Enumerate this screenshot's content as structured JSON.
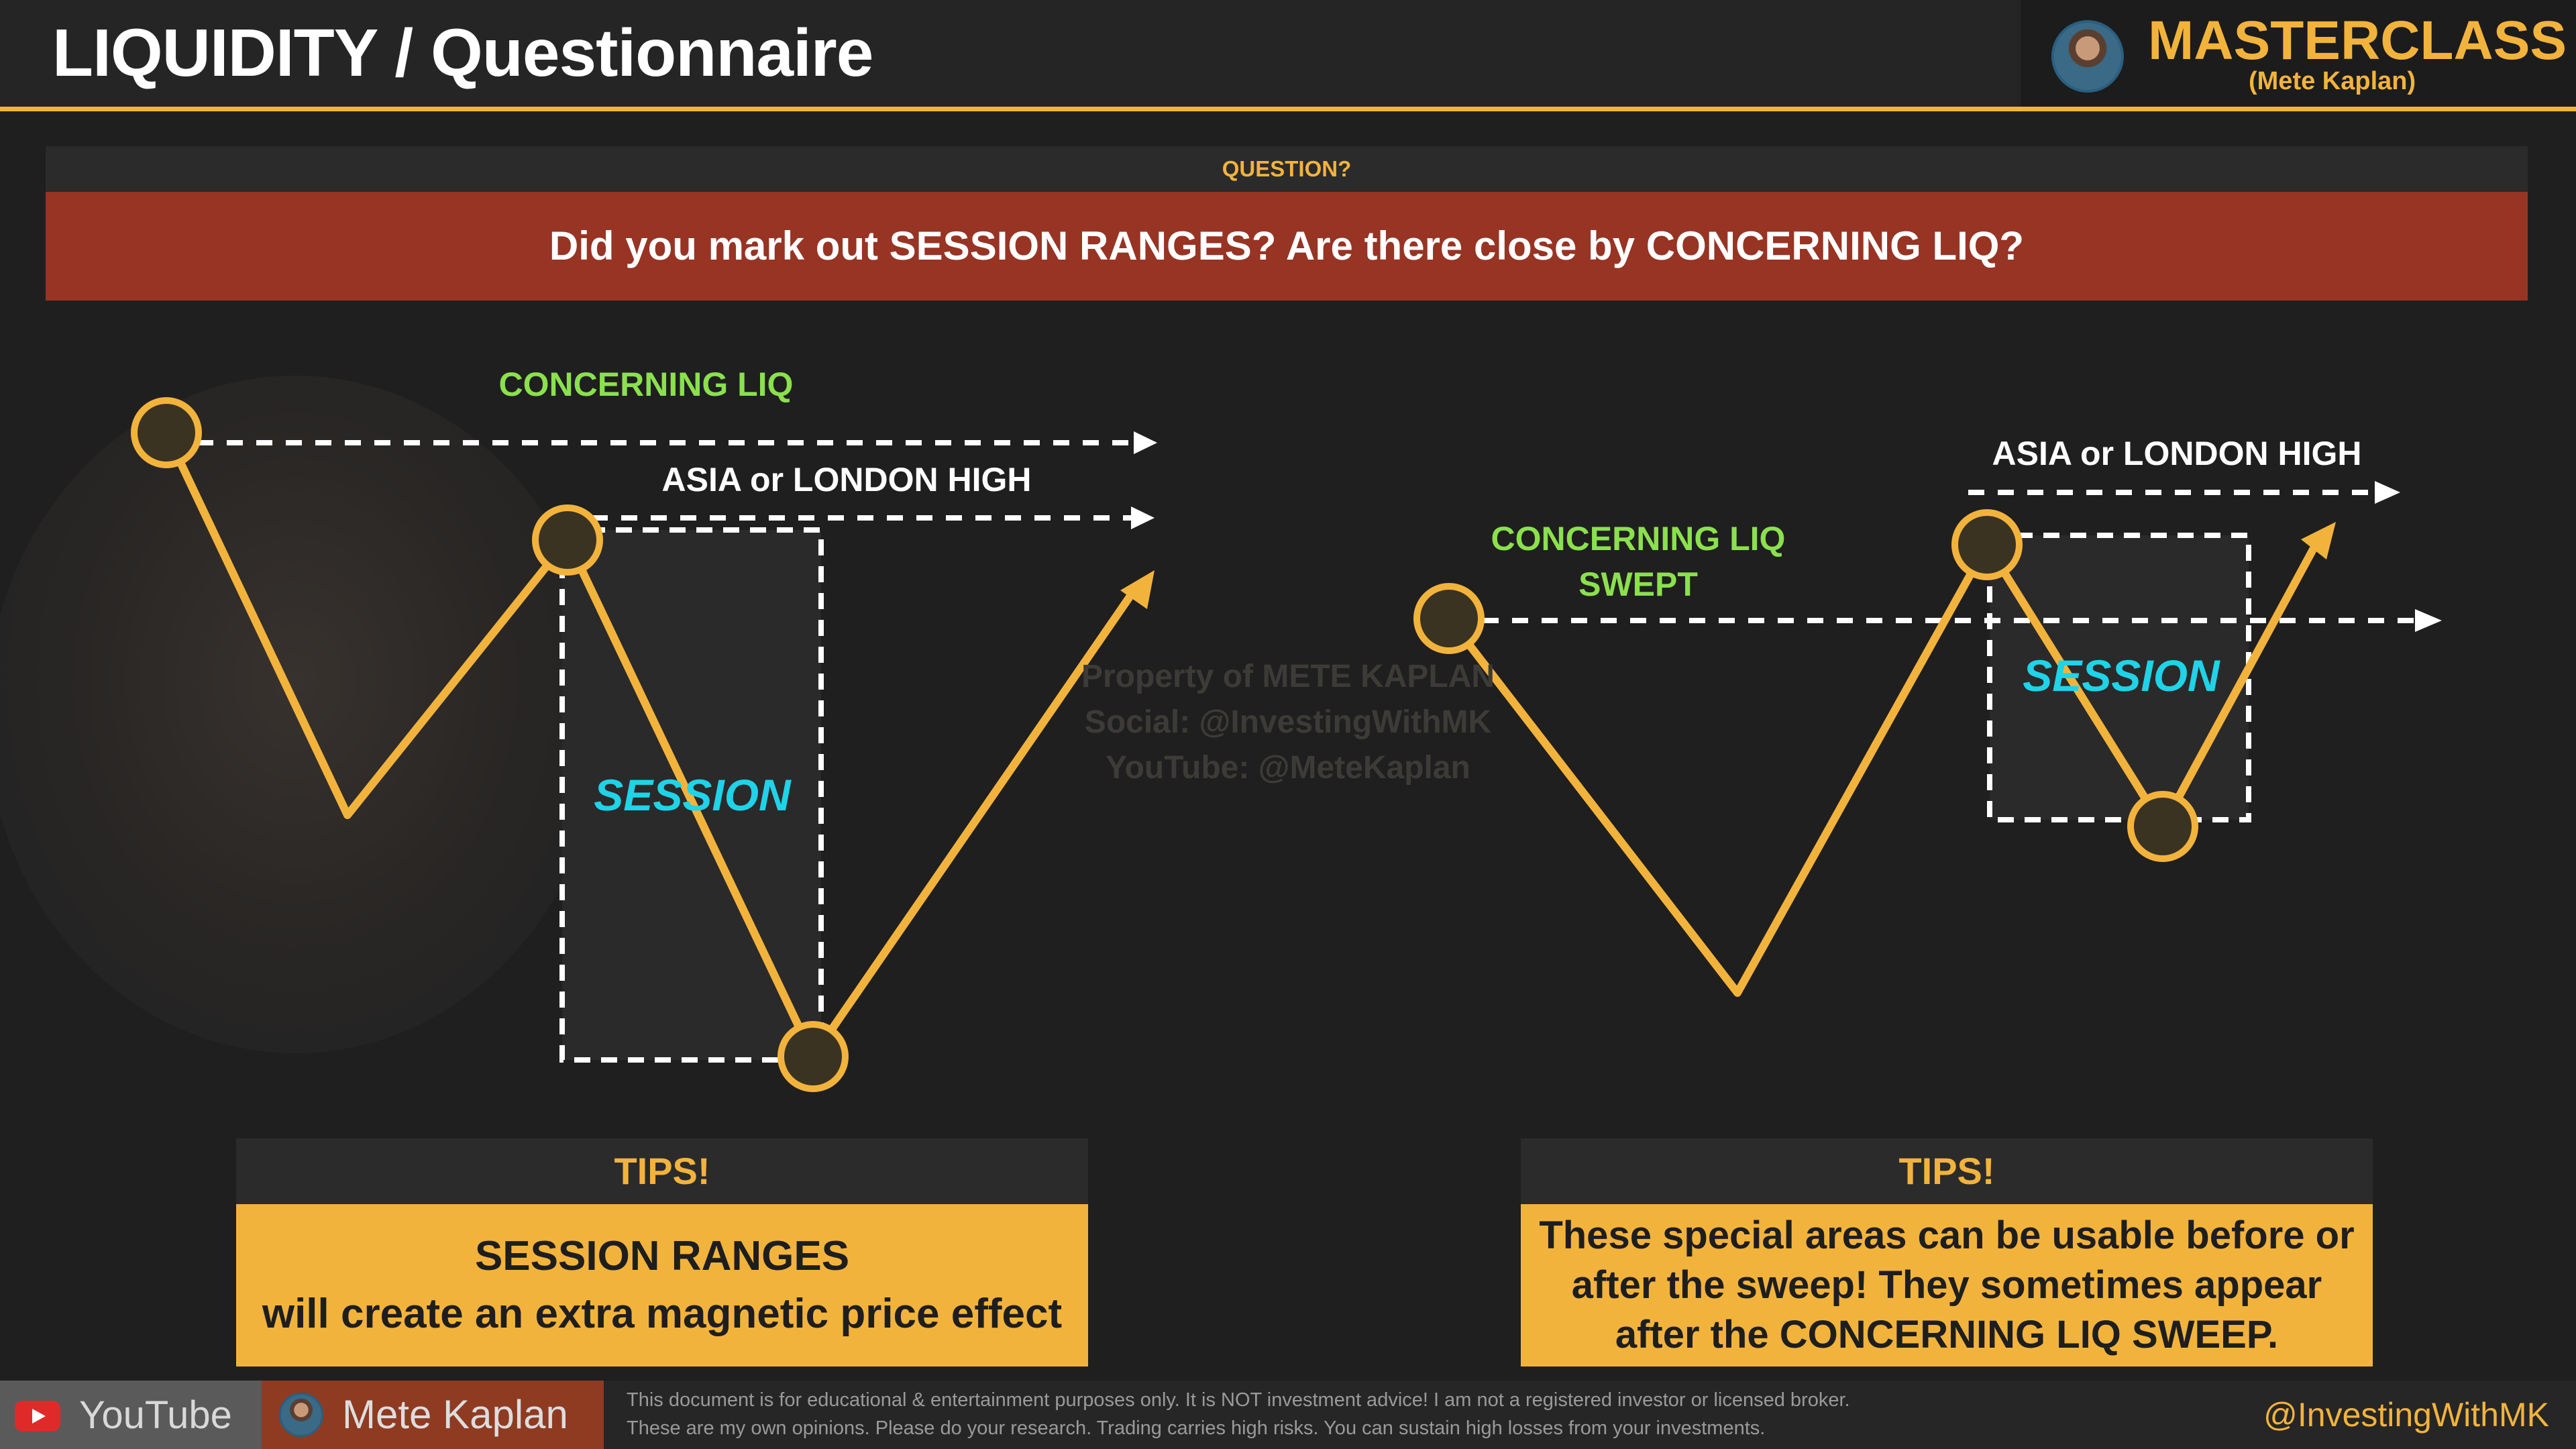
{
  "header": {
    "title": "LIQUIDITY / Questionnaire",
    "brand_title": "MASTERCLASS",
    "brand_subtitle": "(Mete Kaplan)"
  },
  "question": {
    "label": "QUESTION?",
    "text": "Did you mark out SESSION RANGES? Are there close by CONCERNING LIQ?"
  },
  "diagram_left": {
    "concerning_liq_label": "CONCERNING LIQ",
    "high_label": "ASIA or LONDON HIGH",
    "session_label": "SESSION"
  },
  "diagram_right": {
    "concerning_liq_label_line1": "CONCERNING LIQ",
    "concerning_liq_label_line2": "SWEPT",
    "high_label": "ASIA or LONDON HIGH",
    "session_label": "SESSION"
  },
  "watermark": {
    "line1": "Property of METE KAPLAN",
    "line2": "Social: @InvestingWithMK",
    "line3": "YouTube: @MeteKaplan"
  },
  "tips_left": {
    "heading": "TIPS!",
    "line1": "SESSION RANGES",
    "line2": "will create an extra magnetic price effect"
  },
  "tips_right": {
    "heading": "TIPS!",
    "line1": "These special areas can be usable before or",
    "line2": "after the sweep! They sometimes appear",
    "line3": "after the CONCERNING LIQ SWEEP."
  },
  "footer": {
    "youtube": "YouTube",
    "name": "Mete Kaplan",
    "disclaimer_line1": "This document is for educational & entertainment purposes only. It is NOT investment advice! I am not a registered investor or licensed broker.",
    "disclaimer_line2": "These are my own opinions. Please do your research. Trading carries high risks. You can sustain high losses from your investments.",
    "handle": "@InvestingWithMK"
  },
  "colors": {
    "accent": "#f2b33d",
    "question_bg": "#973424",
    "concerning_liq": "#8be04e",
    "session": "#1fd3e8",
    "background": "#1f1f1f"
  }
}
